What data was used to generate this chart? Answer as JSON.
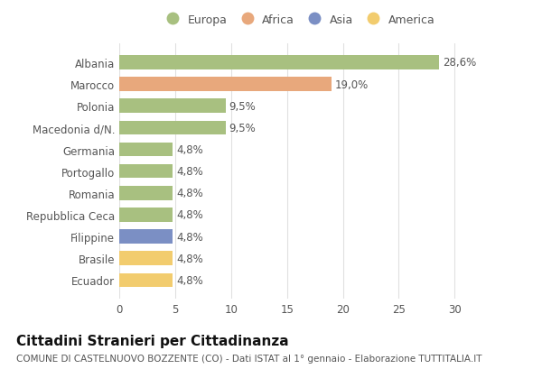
{
  "categories": [
    "Albania",
    "Marocco",
    "Polonia",
    "Macedonia d/N.",
    "Germania",
    "Portogallo",
    "Romania",
    "Repubblica Ceca",
    "Filippine",
    "Brasile",
    "Ecuador"
  ],
  "values": [
    28.6,
    19.0,
    9.5,
    9.5,
    4.8,
    4.8,
    4.8,
    4.8,
    4.8,
    4.8,
    4.8
  ],
  "labels": [
    "28,6%",
    "19,0%",
    "9,5%",
    "9,5%",
    "4,8%",
    "4,8%",
    "4,8%",
    "4,8%",
    "4,8%",
    "4,8%",
    "4,8%"
  ],
  "colors": [
    "#a8c080",
    "#e8a87c",
    "#a8c080",
    "#a8c080",
    "#a8c080",
    "#a8c080",
    "#a8c080",
    "#a8c080",
    "#7b8fc4",
    "#f2cc6e",
    "#f2cc6e"
  ],
  "legend_labels": [
    "Europa",
    "Africa",
    "Asia",
    "America"
  ],
  "legend_colors": [
    "#a8c080",
    "#e8a87c",
    "#7b8fc4",
    "#f2cc6e"
  ],
  "xlim": [
    0,
    32
  ],
  "xticks": [
    0,
    5,
    10,
    15,
    20,
    25,
    30
  ],
  "title": "Cittadini Stranieri per Cittadinanza",
  "subtitle": "COMUNE DI CASTELNUOVO BOZZENTE (CO) - Dati ISTAT al 1° gennaio - Elaborazione TUTTITALIA.IT",
  "bg_color": "#ffffff",
  "bar_height": 0.65,
  "title_fontsize": 11,
  "subtitle_fontsize": 7.5,
  "label_fontsize": 8.5,
  "tick_fontsize": 8.5,
  "legend_fontsize": 9
}
